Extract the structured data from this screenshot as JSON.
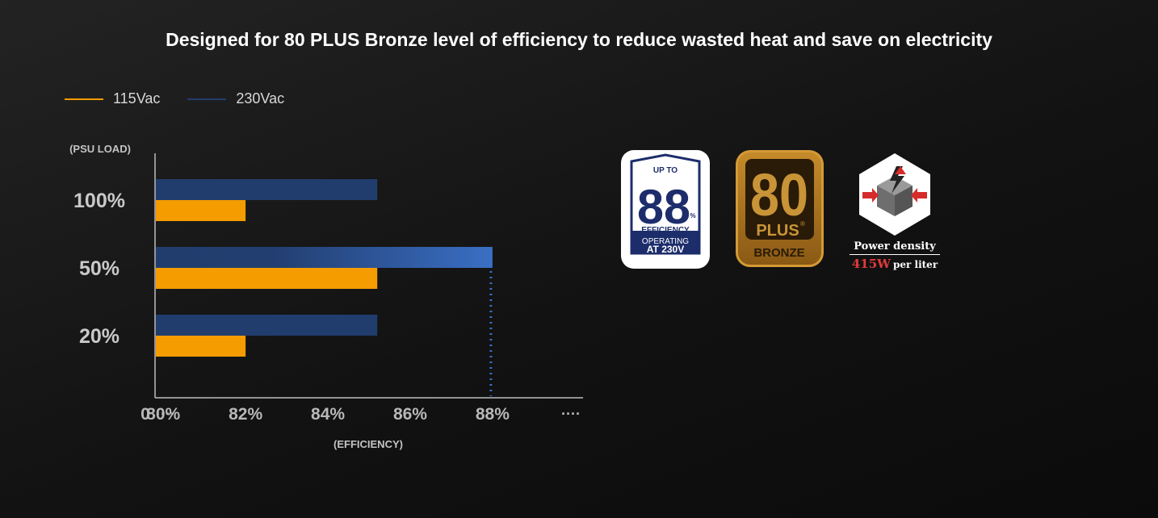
{
  "title": "Designed for 80 PLUS Bronze level of efficiency to reduce wasted heat and save on electricity",
  "legend": [
    {
      "label": "115Vac",
      "color": "#f59c00"
    },
    {
      "label": "230Vac",
      "color": "#213d6e"
    }
  ],
  "chart_data": {
    "type": "bar",
    "orientation": "horizontal",
    "categories": [
      "100%",
      "50%",
      "20%"
    ],
    "series": [
      {
        "name": "230Vac",
        "color": "#213d6e",
        "values": [
          85.2,
          88.0,
          85.2
        ]
      },
      {
        "name": "115Vac",
        "color": "#f59c00",
        "values": [
          82.0,
          85.2,
          82.0
        ]
      }
    ],
    "x_ticks": [
      "80%",
      "82%",
      "84%",
      "86%",
      "88%"
    ],
    "x_tick_values": [
      80,
      82,
      84,
      86,
      88
    ],
    "xlim": [
      79.8,
      90.2
    ],
    "x_axis_prefix": "0",
    "ylabel": "(PSU LOAD)",
    "xlabel": "(EFFICIENCY)",
    "marker_line_value": 88,
    "highlight_bar": {
      "series": "230Vac",
      "category": "50%",
      "color": "#3a6fc4"
    },
    "grid": false,
    "legend_position": "top-left"
  },
  "logos": {
    "badge88": {
      "top_text": "UP TO",
      "number": "88",
      "percent": "%",
      "efficiency_text": "EFFICIENCY",
      "operating_text": "OPERATING",
      "voltage_text": "AT 230V"
    },
    "bronze": {
      "number": "80",
      "plus": "PLUS",
      "registered": "®",
      "level": "BRONZE"
    },
    "power_density": {
      "label": "Power density",
      "value": "415W",
      "unit": "per liter"
    }
  }
}
